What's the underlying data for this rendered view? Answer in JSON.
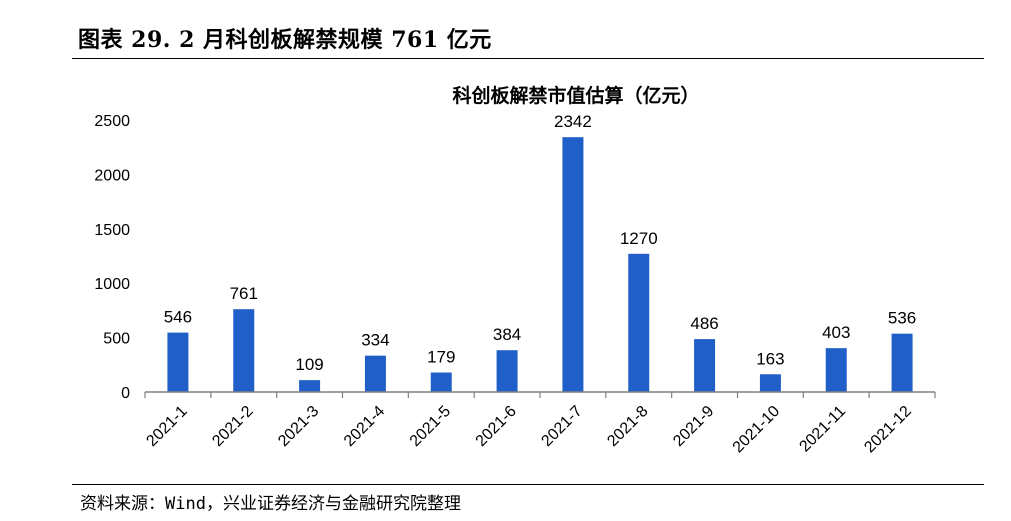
{
  "figure": {
    "title": "图表 29. 2 月科创板解禁规模 761 亿元",
    "source": "资料来源：Wind，兴业证券经济与金融研究院整理"
  },
  "colors": {
    "bar": "#1f5fc7",
    "axis": "#808080"
  },
  "chart_data": {
    "type": "bar",
    "title": "科创板解禁市值估算（亿元）",
    "categories": [
      "2021-1",
      "2021-2",
      "2021-3",
      "2021-4",
      "2021-5",
      "2021-6",
      "2021-7",
      "2021-8",
      "2021-9",
      "2021-10",
      "2021-11",
      "2021-12"
    ],
    "values": [
      546,
      761,
      109,
      334,
      179,
      384,
      2342,
      1270,
      486,
      163,
      403,
      536
    ],
    "ylim": [
      0,
      2500
    ],
    "yticks": [
      0,
      500,
      1000,
      1500,
      2000,
      2500
    ],
    "grid": false,
    "legend": "none",
    "data_labels": true
  }
}
